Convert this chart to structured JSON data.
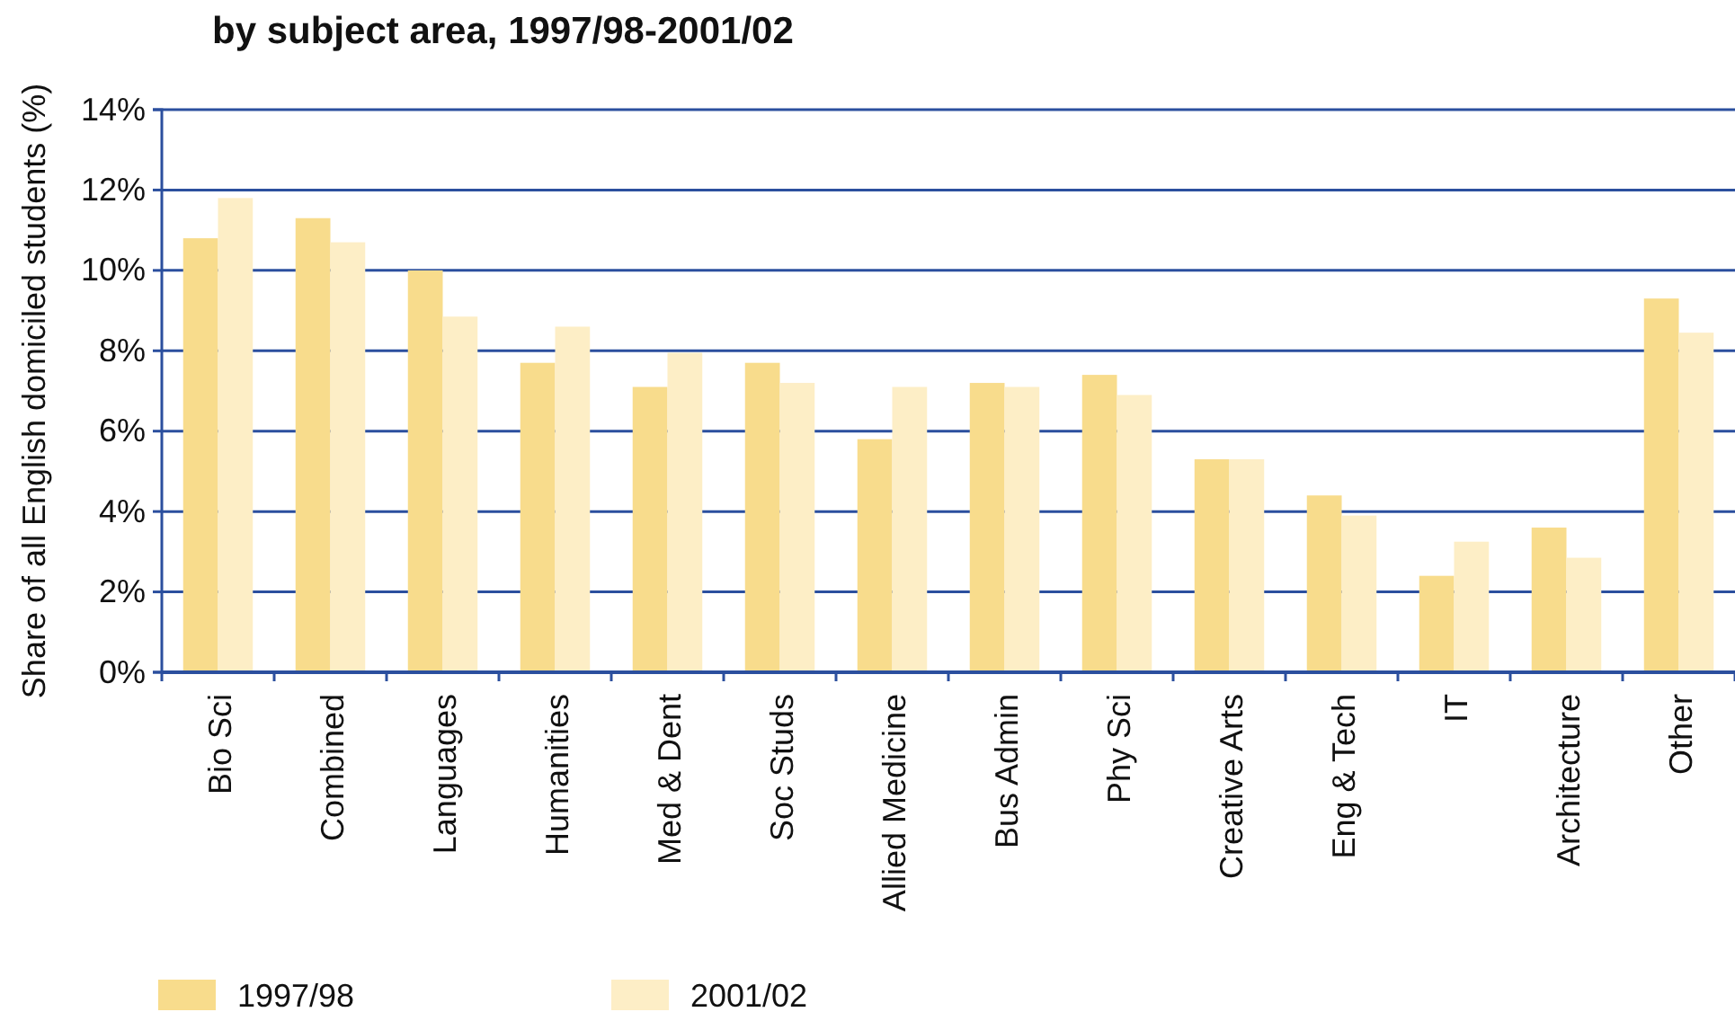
{
  "chart_data": {
    "type": "bar",
    "title": "by subject area, 1997/98-2001/02",
    "ylabel": "Share of all English domiciled students (%)",
    "categories": [
      "Bio Sci",
      "Combined",
      "Languages",
      "Humanities",
      "Med & Dent",
      "Soc Studs",
      "Allied Medicine",
      "Bus Admin",
      "Phy Sci",
      "Creative Arts",
      "Eng & Tech",
      "IT",
      "Architecture",
      "Other"
    ],
    "series": [
      {
        "name": "1997/98",
        "color": "#f8dc8c",
        "values": [
          10.8,
          11.3,
          10.0,
          7.7,
          7.1,
          7.7,
          5.8,
          7.2,
          7.4,
          5.3,
          4.4,
          2.4,
          3.6,
          9.3
        ]
      },
      {
        "name": "2001/02",
        "color": "#fdeec6",
        "values": [
          11.8,
          10.7,
          8.85,
          8.6,
          7.95,
          7.2,
          7.1,
          7.1,
          6.9,
          5.3,
          3.9,
          3.25,
          2.85,
          8.45
        ]
      }
    ],
    "ylim": [
      0,
      14
    ],
    "yticks": [
      {
        "value": 0,
        "label": "0%"
      },
      {
        "value": 2,
        "label": "2%"
      },
      {
        "value": 4,
        "label": "4%"
      },
      {
        "value": 6,
        "label": "6%"
      },
      {
        "value": 8,
        "label": "8%"
      },
      {
        "value": 10,
        "label": "10%"
      },
      {
        "value": 12,
        "label": "12%"
      },
      {
        "value": 14,
        "label": "14%"
      }
    ],
    "grid": "y",
    "legend": "bottom left"
  }
}
